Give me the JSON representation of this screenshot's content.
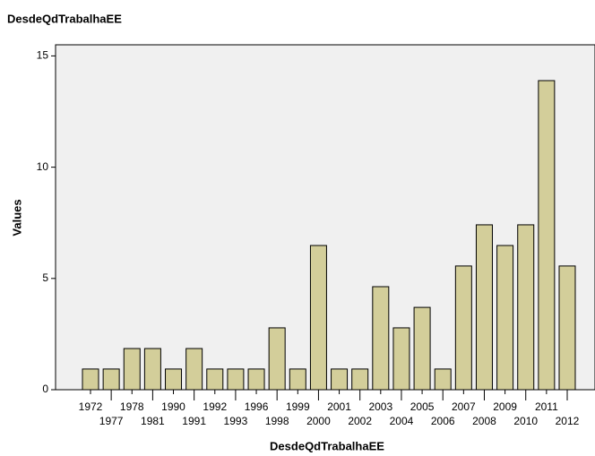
{
  "chart_data": {
    "type": "bar",
    "title": "DesdeQdTrabalhaEE",
    "x_label": "DesdeQdTrabalhaEE",
    "y_label": "Values",
    "categories": [
      "1972",
      "1977",
      "1978",
      "1981",
      "1990",
      "1991",
      "1992",
      "1993",
      "1996",
      "1998",
      "1999",
      "2000",
      "2001",
      "2002",
      "2003",
      "2004",
      "2005",
      "2006",
      "2007",
      "2008",
      "2009",
      "2010",
      "2011",
      "2012"
    ],
    "values": [
      0.93,
      0.93,
      1.85,
      1.85,
      0.93,
      1.85,
      0.93,
      0.93,
      0.93,
      2.78,
      0.93,
      6.48,
      0.93,
      0.93,
      4.63,
      2.78,
      3.7,
      0.93,
      5.56,
      7.41,
      6.48,
      7.41,
      13.89,
      5.56
    ],
    "color": "#d3ce9a",
    "ylim": [
      0,
      15.5
    ],
    "yticks": [
      0,
      5,
      10,
      15
    ],
    "grid": false
  }
}
